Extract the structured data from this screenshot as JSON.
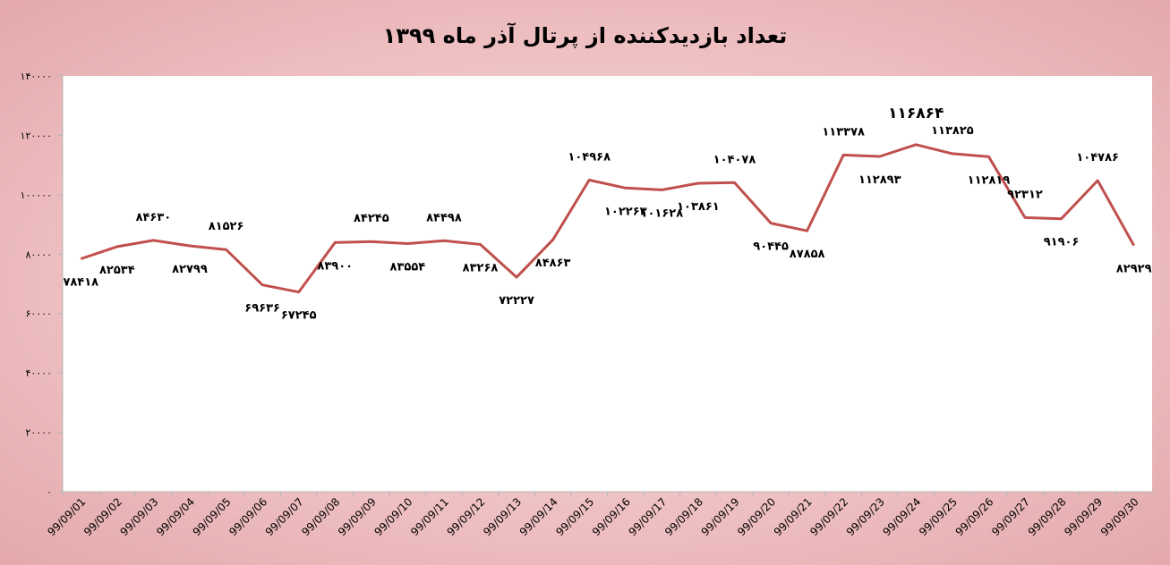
{
  "chart_data": {
    "type": "line",
    "title": "تعداد بازدیدکننده از پرتال آذر ماه ۱۳۹۹",
    "xlabel": "",
    "ylabel": "",
    "ylim": [
      0,
      140000
    ],
    "y_ticks": [
      0,
      20000,
      40000,
      60000,
      80000,
      100000,
      120000,
      140000
    ],
    "y_tick_labels": [
      "۰",
      "۲۰۰۰۰",
      "۴۰۰۰۰",
      "۶۰۰۰۰",
      "۸۰۰۰۰",
      "۱۰۰۰۰۰",
      "۱۲۰۰۰۰",
      "۱۴۰۰۰۰"
    ],
    "grid": false,
    "legend": "none",
    "line_color": "#c0504d",
    "categories": [
      "99/09/01",
      "99/09/02",
      "99/09/03",
      "99/09/04",
      "99/09/05",
      "99/09/06",
      "99/09/07",
      "99/09/08",
      "99/09/09",
      "99/09/10",
      "99/09/11",
      "99/09/12",
      "99/09/13",
      "99/09/14",
      "99/09/15",
      "99/09/16",
      "99/09/17",
      "99/09/18",
      "99/09/19",
      "99/09/20",
      "99/09/21",
      "99/09/22",
      "99/09/23",
      "99/09/24",
      "99/09/25",
      "99/09/26",
      "99/09/27",
      "99/09/28",
      "99/09/29",
      "99/09/30"
    ],
    "series": [
      {
        "values": [
          78418,
          82534,
          84630,
          82799,
          81526,
          69636,
          67245,
          83900,
          84245,
          83554,
          84498,
          83268,
          72227,
          84863,
          104968,
          102263,
          101628,
          103861,
          104078,
          90445,
          87858,
          113378,
          112893,
          116864,
          113825,
          112819,
          92312,
          91906,
          104786,
          82929
        ],
        "data_labels": [
          "۷۸۴۱۸",
          "۸۲۵۳۴",
          "۸۴۶۳۰",
          "۸۲۷۹۹",
          "۸۱۵۲۶",
          "۶۹۶۳۶",
          "۶۷۲۴۵",
          "۸۳۹۰۰",
          "۸۴۲۴۵",
          "۸۳۵۵۴",
          "۸۴۴۹۸",
          "۸۳۲۶۸",
          "۷۲۲۲۷",
          "۸۴۸۶۳",
          "۱۰۴۹۶۸",
          "۱۰۲۲۶۳",
          "۱۰۱۶۲۸",
          "۱۰۳۸۶۱",
          "۱۰۴۰۷۸",
          "۹۰۴۴۵",
          "۸۷۸۵۸",
          "۱۱۳۳۷۸",
          "۱۱۲۸۹۳",
          "۱۱۶۸۶۴",
          "۱۱۳۸۲۵",
          "۱۱۲۸۱۹",
          "۹۲۳۱۲",
          "۹۱۹۰۶",
          "۱۰۴۷۸۶",
          "۸۲۹۲۹"
        ]
      }
    ]
  }
}
